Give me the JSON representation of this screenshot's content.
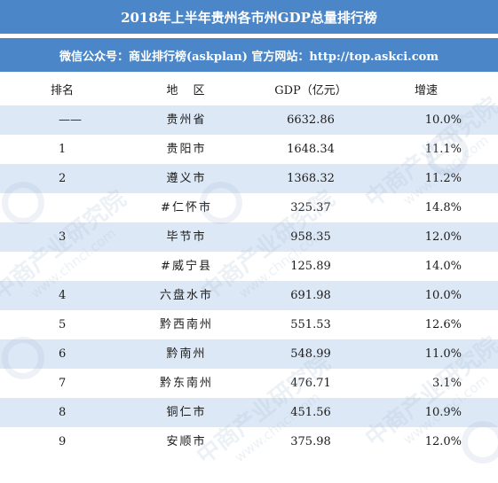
{
  "title": "2018年上半年贵州各市州GDP总量排行榜",
  "subtitle": "微信公众号：商业排行榜(askplan) 官方网站：http://top.askci.com",
  "watermark": {
    "name": "中商产业研究院",
    "url": "www.chnci.com"
  },
  "table": {
    "headers": {
      "rank": "排名",
      "region": "地　区",
      "gdp": "GDP（亿元）",
      "growth": "增速"
    },
    "rows": [
      {
        "rank": "——",
        "region": "贵州省",
        "gdp": "6632.86",
        "growth": "10.0%"
      },
      {
        "rank": "1",
        "region": "贵阳市",
        "gdp": "1648.34",
        "growth": "11.1%"
      },
      {
        "rank": "2",
        "region": "遵义市",
        "gdp": "1368.32",
        "growth": "11.2%"
      },
      {
        "rank": "",
        "region": "#仁怀市",
        "gdp": "325.37",
        "growth": "14.8%"
      },
      {
        "rank": "3",
        "region": "毕节市",
        "gdp": "958.35",
        "growth": "12.0%"
      },
      {
        "rank": "",
        "region": "#威宁县",
        "gdp": "125.89",
        "growth": "14.0%"
      },
      {
        "rank": "4",
        "region": "六盘水市",
        "gdp": "691.98",
        "growth": "10.0%"
      },
      {
        "rank": "5",
        "region": "黔西南州",
        "gdp": "551.53",
        "growth": "12.6%"
      },
      {
        "rank": "6",
        "region": "黔南州",
        "gdp": "548.99",
        "growth": "11.0%"
      },
      {
        "rank": "7",
        "region": "黔东南州",
        "gdp": "476.71",
        "growth": "3.1%"
      },
      {
        "rank": "8",
        "region": "铜仁市",
        "gdp": "451.56",
        "growth": "10.9%"
      },
      {
        "rank": "9",
        "region": "安顺市",
        "gdp": "375.98",
        "growth": "12.0%"
      }
    ]
  },
  "colors": {
    "header_bar": "#4a86c8",
    "alt_row": "#dde8f6",
    "text": "#1a1a1a"
  }
}
